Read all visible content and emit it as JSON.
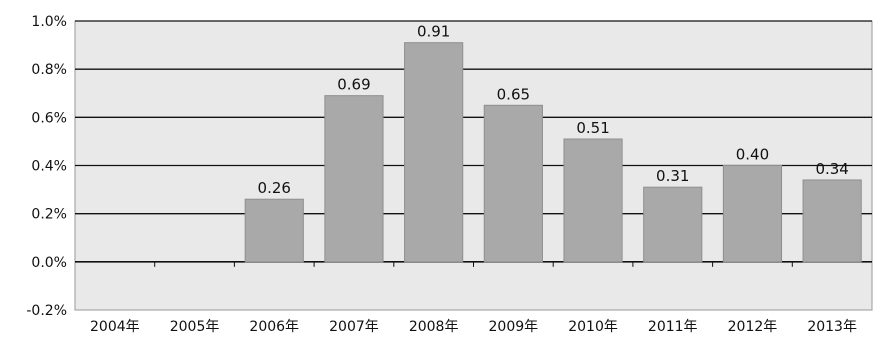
{
  "chart_data": {
    "type": "bar",
    "categories": [
      "2004年",
      "2005年",
      "2006年",
      "2007年",
      "2008年",
      "2009年",
      "2010年",
      "2011年",
      "2012年",
      "2013年"
    ],
    "values": [
      0.0,
      0.0,
      0.26,
      0.69,
      0.91,
      0.65,
      0.51,
      0.31,
      0.4,
      0.34
    ],
    "data_labels": [
      "",
      "",
      "0.26",
      "0.69",
      "0.91",
      "0.65",
      "0.51",
      "0.31",
      "0.40",
      "0.34"
    ],
    "y_ticks": [
      {
        "value": 1.0,
        "label": "1.0%"
      },
      {
        "value": 0.8,
        "label": "0.8%"
      },
      {
        "value": 0.6,
        "label": "0.6%"
      },
      {
        "value": 0.4,
        "label": "0.4%"
      },
      {
        "value": 0.2,
        "label": "0.2%"
      },
      {
        "value": 0.0,
        "label": "0.0%"
      },
      {
        "value": -0.2,
        "label": "-0.2%"
      }
    ],
    "ylim": [
      -0.2,
      1.0
    ],
    "title": "",
    "xlabel": "",
    "ylabel": "",
    "grid": true,
    "legend": "none",
    "colors": {
      "plot_background": "#e9e9e9",
      "bar": "#a9a9a9",
      "bar_edge": "#8f8f8f",
      "gridline": "#111111",
      "text": "#111111"
    }
  }
}
